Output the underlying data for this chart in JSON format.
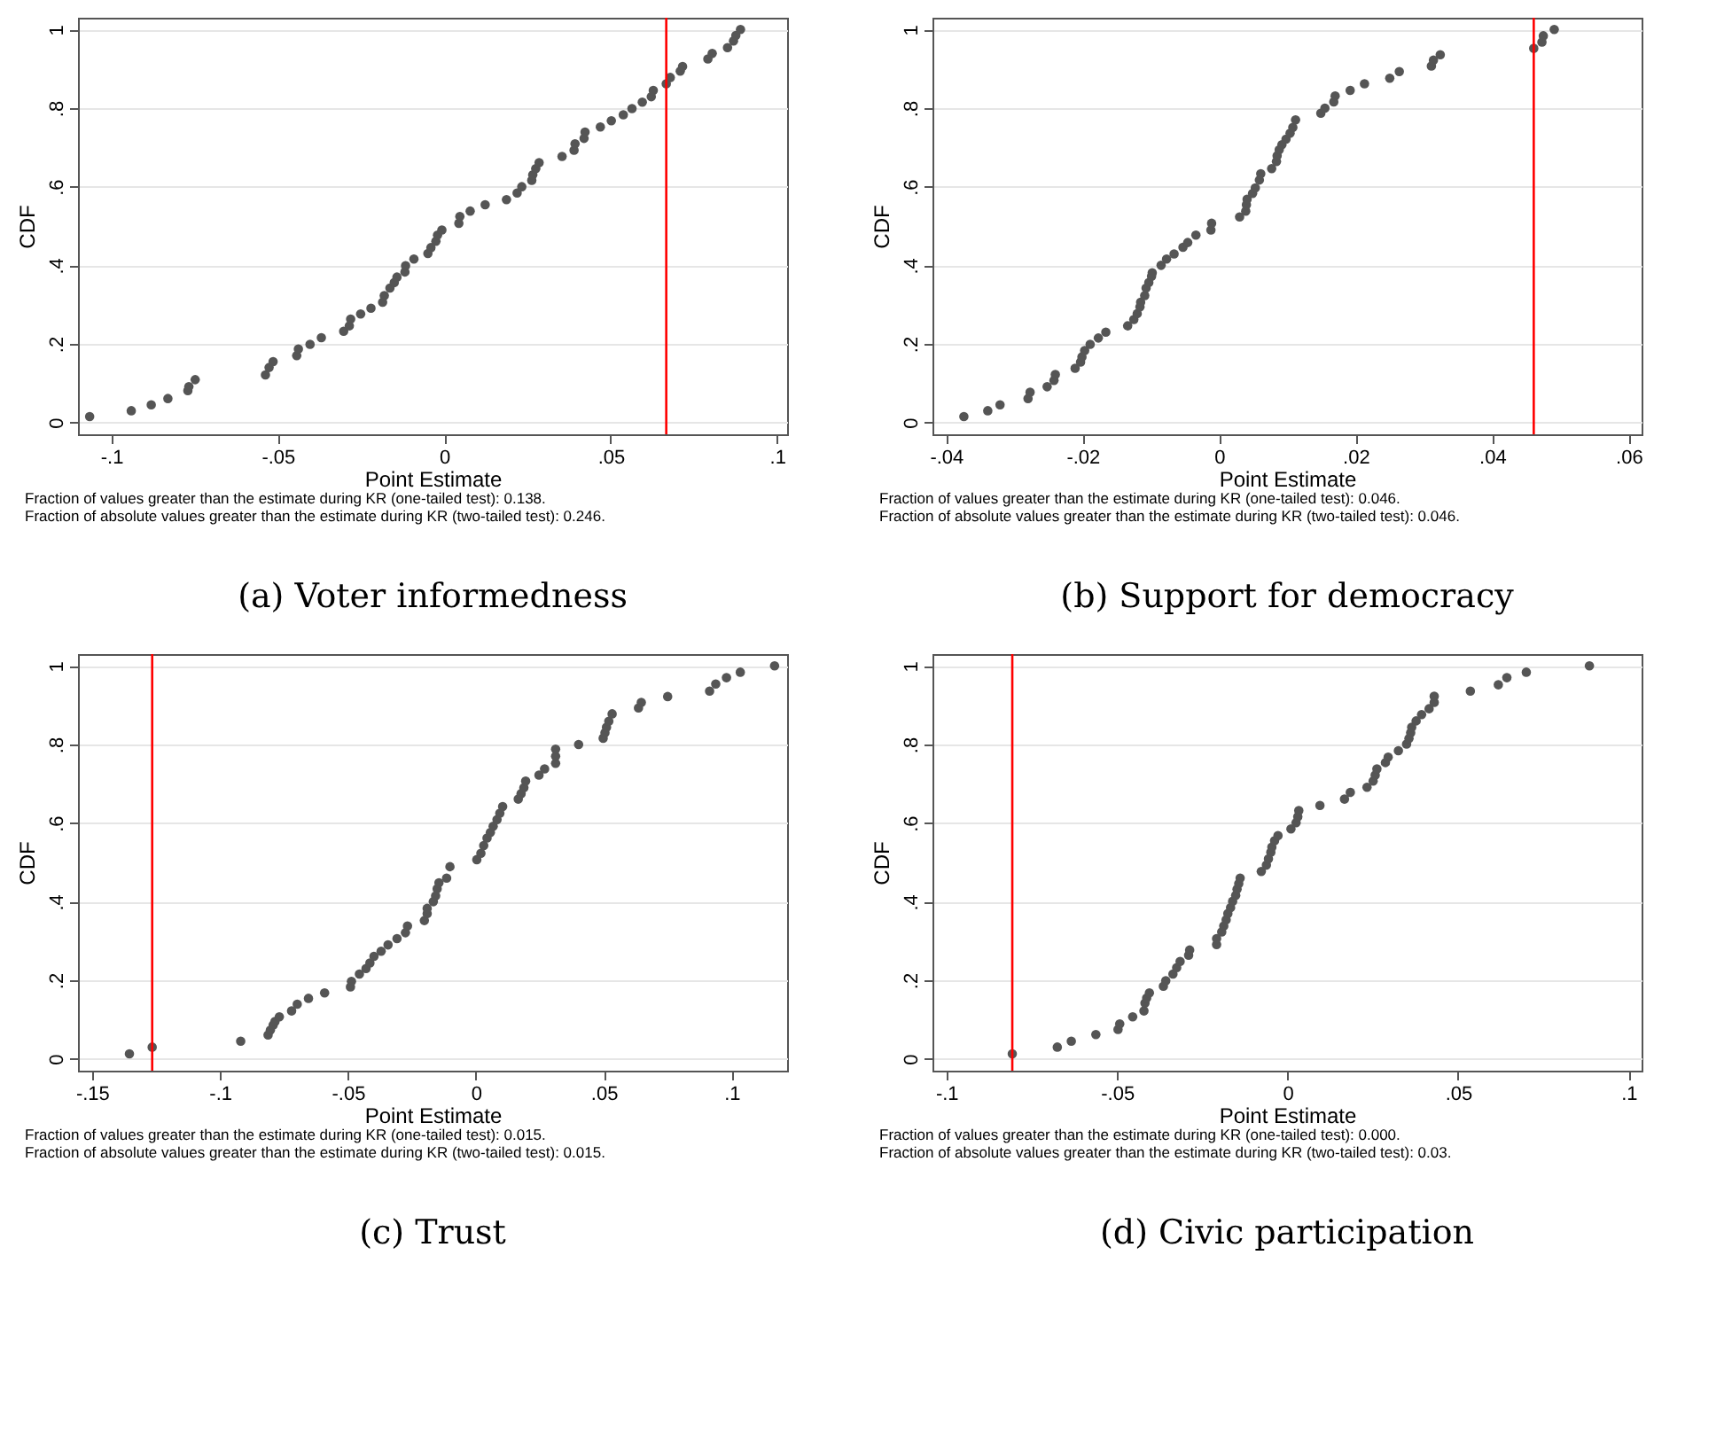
{
  "chart_data": [
    {
      "type": "scatter",
      "title": "(a) Voter informedness",
      "xlabel": "Point Estimate",
      "ylabel": "CDF",
      "color": "#555555",
      "marker": "circle",
      "grid": "y",
      "xlim": [
        -0.11,
        0.103
      ],
      "ylim": [
        -0.03,
        1.03
      ],
      "xticks": [
        {
          "value": -0.1,
          "label": "-.1"
        },
        {
          "value": -0.05,
          "label": "-.05"
        },
        0,
        {
          "value": 0.05,
          "label": ".05"
        },
        {
          "value": 0.1,
          "label": ".1"
        }
      ],
      "yticks": [
        0,
        {
          "value": 0.2,
          "label": ".2"
        },
        {
          "value": 0.4,
          "label": ".4"
        },
        {
          "value": 0.6,
          "label": ".6"
        },
        {
          "value": 0.8,
          "label": ".8"
        },
        1
      ],
      "ref_lines": [
        {
          "axis": "x",
          "value": 0.0667,
          "color": "#ff0000"
        }
      ],
      "annotations": [
        "Fraction of values greater than the estimate during KR (one-tailed test): 0.138.",
        "Fraction of absolute values greater than the estimate during KR (two-tailed test): 0.246."
      ],
      "x": [
        -0.1065,
        -0.094,
        -0.088,
        -0.083,
        -0.077,
        -0.0767,
        -0.0748,
        -0.0537,
        -0.0526,
        -0.0514,
        -0.0443,
        -0.0438,
        -0.0403,
        -0.0369,
        -0.0302,
        -0.0285,
        -0.0281,
        -0.0251,
        -0.022,
        -0.0185,
        -0.018,
        -0.0163,
        -0.015,
        -0.0142,
        -0.0118,
        -0.0116,
        -0.0091,
        -0.0049,
        -0.004,
        -0.0025,
        -0.002,
        -0.0007,
        0.0044,
        0.0047,
        0.0078,
        0.0123,
        0.0187,
        0.0219,
        0.0233,
        0.0263,
        0.0266,
        0.0275,
        0.0285,
        0.0354,
        0.039,
        0.0393,
        0.042,
        0.0423,
        0.0469,
        0.0502,
        0.0538,
        0.0564,
        0.0595,
        0.0622,
        0.0628,
        0.0667,
        0.0679,
        0.0709,
        0.0716,
        0.0792,
        0.0805,
        0.0851,
        0.0869,
        0.0876,
        0.089
      ],
      "values": [
        0.015,
        0.03,
        0.045,
        0.061,
        0.081,
        0.091,
        0.109,
        0.121,
        0.14,
        0.155,
        0.17,
        0.187,
        0.199,
        0.216,
        0.232,
        0.246,
        0.263,
        0.276,
        0.291,
        0.306,
        0.323,
        0.342,
        0.356,
        0.37,
        0.383,
        0.399,
        0.416,
        0.43,
        0.445,
        0.461,
        0.477,
        0.49,
        0.507,
        0.524,
        0.538,
        0.554,
        0.567,
        0.584,
        0.6,
        0.616,
        0.63,
        0.646,
        0.661,
        0.677,
        0.693,
        0.709,
        0.723,
        0.739,
        0.752,
        0.768,
        0.783,
        0.799,
        0.815,
        0.829,
        0.845,
        0.862,
        0.878,
        0.894,
        0.906,
        0.925,
        0.939,
        0.954,
        0.971,
        0.985,
        1.0
      ]
    },
    {
      "type": "scatter",
      "title": "(b) Support for democracy",
      "xlabel": "Point Estimate",
      "ylabel": "CDF",
      "color": "#555555",
      "marker": "circle",
      "grid": "y",
      "xlim": [
        -0.042,
        0.0619
      ],
      "ylim": [
        -0.03,
        1.03
      ],
      "xticks": [
        {
          "value": -0.04,
          "label": "-.04"
        },
        {
          "value": -0.02,
          "label": "-.02"
        },
        0,
        {
          "value": 0.02,
          "label": ".02"
        },
        {
          "value": 0.04,
          "label": ".04"
        },
        {
          "value": 0.06,
          "label": ".06"
        }
      ],
      "yticks": [
        0,
        {
          "value": 0.2,
          "label": ".2"
        },
        {
          "value": 0.4,
          "label": ".4"
        },
        {
          "value": 0.6,
          "label": ".6"
        },
        {
          "value": 0.8,
          "label": ".8"
        },
        1
      ],
      "ref_lines": [
        {
          "axis": "x",
          "value": 0.0461,
          "color": "#ff0000"
        }
      ],
      "annotations": [
        "Fraction of values greater than the estimate during KR (one-tailed test): 0.046.",
        "Fraction of absolute values greater than the estimate during KR (two-tailed test): 0.046."
      ],
      "x": [
        -0.0374,
        -0.0339,
        -0.0321,
        -0.028,
        -0.0277,
        -0.0252,
        -0.0242,
        -0.024,
        -0.0211,
        -0.0203,
        -0.0201,
        -0.0197,
        -0.0189,
        -0.0177,
        -0.0166,
        -0.0134,
        -0.0125,
        -0.012,
        -0.0116,
        -0.0115,
        -0.0109,
        -0.0107,
        -0.0103,
        -0.0099,
        -0.0098,
        -0.0085,
        -0.0077,
        -0.0066,
        -0.0053,
        -0.0046,
        -0.0034,
        -0.0012,
        -0.0011,
        0.003,
        0.0039,
        0.004,
        0.0041,
        0.0049,
        0.0053,
        0.0059,
        0.0061,
        0.0077,
        0.0084,
        0.0085,
        0.0088,
        0.0092,
        0.0098,
        0.0104,
        0.0108,
        0.0112,
        0.0149,
        0.0155,
        0.0168,
        0.017,
        0.0192,
        0.0213,
        0.025,
        0.0264,
        0.0311,
        0.0314,
        0.0324,
        0.0461,
        0.0473,
        0.0475,
        0.0491
      ],
      "values": [
        0.015,
        0.03,
        0.045,
        0.061,
        0.077,
        0.091,
        0.107,
        0.122,
        0.138,
        0.154,
        0.167,
        0.183,
        0.199,
        0.215,
        0.23,
        0.246,
        0.262,
        0.277,
        0.294,
        0.306,
        0.323,
        0.342,
        0.356,
        0.372,
        0.381,
        0.4,
        0.416,
        0.429,
        0.446,
        0.458,
        0.477,
        0.49,
        0.507,
        0.523,
        0.538,
        0.554,
        0.568,
        0.583,
        0.597,
        0.617,
        0.633,
        0.646,
        0.664,
        0.679,
        0.694,
        0.707,
        0.721,
        0.736,
        0.751,
        0.77,
        0.787,
        0.8,
        0.816,
        0.831,
        0.845,
        0.862,
        0.876,
        0.893,
        0.907,
        0.922,
        0.936,
        0.952,
        0.968,
        0.984,
        1.0
      ]
    },
    {
      "type": "scatter",
      "title": "(c) Trust",
      "xlabel": "Point Estimate",
      "ylabel": "CDF",
      "color": "#555555",
      "marker": "circle",
      "grid": "y",
      "xlim": [
        -0.1555,
        0.1217
      ],
      "ylim": [
        -0.03,
        1.03
      ],
      "xticks": [
        {
          "value": -0.15,
          "label": "-.15"
        },
        {
          "value": -0.1,
          "label": "-.1"
        },
        {
          "value": -0.05,
          "label": "-.05"
        },
        0,
        {
          "value": 0.05,
          "label": ".05"
        },
        {
          "value": 0.1,
          "label": ".1"
        }
      ],
      "yticks": [
        0,
        {
          "value": 0.2,
          "label": ".2"
        },
        {
          "value": 0.4,
          "label": ".4"
        },
        {
          "value": 0.6,
          "label": ".6"
        },
        {
          "value": 0.8,
          "label": ".8"
        },
        1
      ],
      "ref_lines": [
        {
          "axis": "x",
          "value": -0.1265,
          "color": "#ff0000"
        }
      ],
      "annotations": [
        "Fraction of values greater than the estimate during KR (one-tailed test): 0.015.",
        "Fraction of absolute values greater than the estimate during KR (two-tailed test): 0.015."
      ],
      "x": [
        -0.1354,
        -0.1265,
        -0.0919,
        -0.0812,
        -0.0803,
        -0.0792,
        -0.0785,
        -0.0768,
        -0.072,
        -0.0698,
        -0.0654,
        -0.0591,
        -0.049,
        -0.0486,
        -0.0455,
        -0.0429,
        -0.0414,
        -0.0398,
        -0.037,
        -0.0343,
        -0.0308,
        -0.0275,
        -0.0267,
        -0.0201,
        -0.019,
        -0.019,
        -0.0166,
        -0.0157,
        -0.0151,
        -0.0144,
        -0.0114,
        -0.0101,
        0.0004,
        0.002,
        0.0031,
        0.0044,
        0.0057,
        0.0068,
        0.0083,
        0.0094,
        0.0105,
        0.0166,
        0.0177,
        0.0188,
        0.0195,
        0.0247,
        0.0269,
        0.0312,
        0.0312,
        0.0312,
        0.0402,
        0.0498,
        0.0505,
        0.0511,
        0.052,
        0.0533,
        0.0636,
        0.0647,
        0.075,
        0.0914,
        0.0938,
        0.098,
        0.1034,
        0.1168
      ],
      "values": [
        0.013,
        0.03,
        0.045,
        0.061,
        0.073,
        0.086,
        0.095,
        0.107,
        0.122,
        0.139,
        0.154,
        0.168,
        0.183,
        0.197,
        0.216,
        0.23,
        0.244,
        0.261,
        0.274,
        0.29,
        0.306,
        0.321,
        0.338,
        0.352,
        0.37,
        0.383,
        0.4,
        0.415,
        0.433,
        0.448,
        0.46,
        0.489,
        0.507,
        0.523,
        0.543,
        0.562,
        0.576,
        0.592,
        0.609,
        0.625,
        0.642,
        0.661,
        0.675,
        0.69,
        0.707,
        0.722,
        0.738,
        0.752,
        0.77,
        0.788,
        0.8,
        0.816,
        0.83,
        0.844,
        0.859,
        0.878,
        0.893,
        0.907,
        0.922,
        0.936,
        0.954,
        0.97,
        0.984,
        1.0
      ]
    },
    {
      "type": "scatter",
      "title": "(d) Civic participation",
      "xlabel": "Point Estimate",
      "ylabel": "CDF",
      "color": "#555555",
      "marker": "circle",
      "grid": "y",
      "xlim": [
        -0.1041,
        0.1038
      ],
      "ylim": [
        -0.03,
        1.03
      ],
      "xticks": [
        {
          "value": -0.1,
          "label": "-.1"
        },
        {
          "value": -0.05,
          "label": "-.05"
        },
        0,
        {
          "value": 0.05,
          "label": ".05"
        },
        {
          "value": 0.1,
          "label": ".1"
        }
      ],
      "yticks": [
        0,
        {
          "value": 0.2,
          "label": ".2"
        },
        {
          "value": 0.4,
          "label": ".4"
        },
        {
          "value": 0.6,
          "label": ".6"
        },
        {
          "value": 0.8,
          "label": ".8"
        },
        1
      ],
      "ref_lines": [
        {
          "axis": "x",
          "value": -0.0807,
          "color": "#ff0000"
        }
      ],
      "annotations": [
        "Fraction of values greater than the estimate during KR (one-tailed test): 0.000.",
        "Fraction of absolute values greater than the estimate during KR (two-tailed test): 0.03."
      ],
      "x": [
        -0.0807,
        -0.0675,
        -0.0634,
        -0.0562,
        -0.0497,
        -0.0492,
        -0.0454,
        -0.0421,
        -0.0418,
        -0.0413,
        -0.0405,
        -0.0364,
        -0.0357,
        -0.0336,
        -0.0325,
        -0.0315,
        -0.029,
        -0.0287,
        -0.0208,
        -0.0208,
        -0.0193,
        -0.0187,
        -0.018,
        -0.0175,
        -0.0167,
        -0.0161,
        -0.0152,
        -0.0148,
        -0.0143,
        -0.0139,
        -0.0077,
        -0.0062,
        -0.0056,
        -0.0049,
        -0.0046,
        -0.0038,
        -0.0028,
        0.001,
        0.0025,
        0.003,
        0.0033,
        0.0095,
        0.0167,
        0.0184,
        0.0233,
        0.0251,
        0.0257,
        0.0262,
        0.0287,
        0.0295,
        0.0325,
        0.0349,
        0.0356,
        0.0361,
        0.0364,
        0.0377,
        0.0393,
        0.0415,
        0.043,
        0.043,
        0.0536,
        0.0618,
        0.0643,
        0.07,
        0.0885
      ],
      "values": [
        0.013,
        0.03,
        0.045,
        0.062,
        0.075,
        0.089,
        0.107,
        0.122,
        0.142,
        0.155,
        0.168,
        0.185,
        0.199,
        0.216,
        0.232,
        0.248,
        0.264,
        0.277,
        0.291,
        0.306,
        0.323,
        0.338,
        0.354,
        0.37,
        0.385,
        0.401,
        0.416,
        0.432,
        0.446,
        0.46,
        0.477,
        0.493,
        0.509,
        0.526,
        0.539,
        0.555,
        0.568,
        0.585,
        0.601,
        0.616,
        0.632,
        0.645,
        0.661,
        0.678,
        0.691,
        0.707,
        0.722,
        0.738,
        0.754,
        0.768,
        0.784,
        0.801,
        0.815,
        0.83,
        0.844,
        0.86,
        0.876,
        0.891,
        0.907,
        0.923,
        0.936,
        0.952,
        0.97,
        0.984,
        1.0
      ]
    }
  ]
}
